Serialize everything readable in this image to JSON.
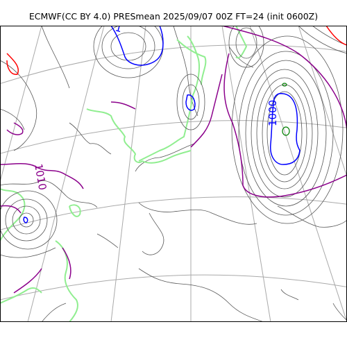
{
  "title": "ECMWF(CC BY 4.0) PRESmean 2025/09/07 00Z FT=24 (init 0600Z)",
  "contour_labels": {
    "high": "1010",
    "low": "1000",
    "partial": "1"
  },
  "colors": {
    "isobar": "#555555",
    "isobar_1010": "#8b008b",
    "isobar_1000": "#0000ff",
    "isobar_high": "#ff0000",
    "coastline": "#90ee90",
    "graticule": "#a9a9a9",
    "frame": "#000000"
  }
}
